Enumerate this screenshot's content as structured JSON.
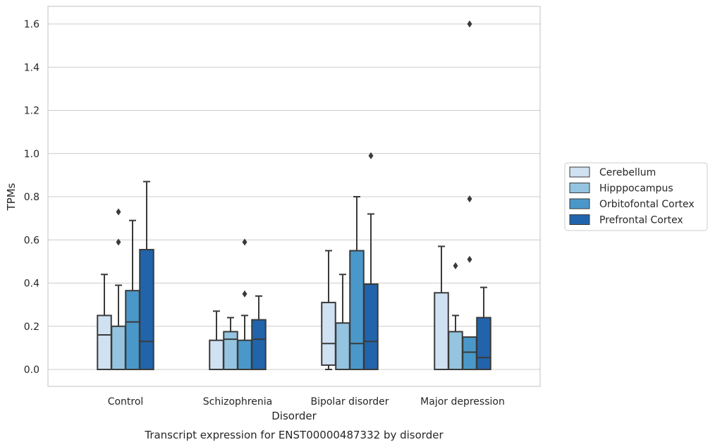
{
  "chart_data": {
    "type": "boxplot",
    "title": "",
    "caption": "Transcript expression for ENST00000487332 by disorder",
    "xlabel": "Disorder",
    "ylabel": "TPMs",
    "ylim": [
      -0.08,
      1.68
    ],
    "yticks": [
      0.0,
      0.2,
      0.4,
      0.6,
      0.8,
      1.0,
      1.2,
      1.4,
      1.6
    ],
    "ytick_labels": [
      "0.0",
      "0.2",
      "0.4",
      "0.6",
      "0.8",
      "1.0",
      "1.2",
      "1.4",
      "1.6"
    ],
    "categories": [
      "Control",
      "Schizophrenia",
      "Bipolar disorder",
      "Major depression"
    ],
    "grid": "horizontal",
    "legend_position": "right",
    "series": [
      {
        "name": "Cerebellum",
        "color": "#d0e1f2",
        "boxes": [
          {
            "whislo": 0.0,
            "q1": 0.0,
            "med": 0.16,
            "q3": 0.25,
            "whishi": 0.44,
            "fliers": []
          },
          {
            "whislo": 0.0,
            "q1": 0.0,
            "med": 0.0,
            "q3": 0.135,
            "whishi": 0.27,
            "fliers": []
          },
          {
            "whislo": 0.0,
            "q1": 0.02,
            "med": 0.12,
            "q3": 0.31,
            "whishi": 0.55,
            "fliers": []
          },
          {
            "whislo": 0.0,
            "q1": 0.0,
            "med": 0.0,
            "q3": 0.355,
            "whishi": 0.57,
            "fliers": []
          }
        ]
      },
      {
        "name": "Hipppocampus",
        "color": "#94c4df",
        "boxes": [
          {
            "whislo": 0.0,
            "q1": 0.0,
            "med": 0.0,
            "q3": 0.2,
            "whishi": 0.39,
            "fliers": [
              0.59,
              0.73
            ]
          },
          {
            "whislo": 0.0,
            "q1": 0.0,
            "med": 0.14,
            "q3": 0.175,
            "whishi": 0.24,
            "fliers": []
          },
          {
            "whislo": 0.0,
            "q1": 0.0,
            "med": 0.0,
            "q3": 0.215,
            "whishi": 0.44,
            "fliers": []
          },
          {
            "whislo": 0.0,
            "q1": 0.0,
            "med": 0.0,
            "q3": 0.175,
            "whishi": 0.25,
            "fliers": [
              0.48
            ]
          }
        ]
      },
      {
        "name": "Orbitofontal Cortex",
        "color": "#4a98c9",
        "boxes": [
          {
            "whislo": 0.0,
            "q1": 0.0,
            "med": 0.22,
            "q3": 0.365,
            "whishi": 0.69,
            "fliers": []
          },
          {
            "whislo": 0.0,
            "q1": 0.0,
            "med": 0.0,
            "q3": 0.135,
            "whishi": 0.25,
            "fliers": [
              0.35,
              0.59
            ]
          },
          {
            "whislo": 0.0,
            "q1": 0.0,
            "med": 0.12,
            "q3": 0.55,
            "whishi": 0.8,
            "fliers": []
          },
          {
            "whislo": 0.0,
            "q1": 0.0,
            "med": 0.08,
            "q3": 0.15,
            "whishi": 0.15,
            "fliers": [
              0.51,
              0.79,
              1.6
            ]
          }
        ]
      },
      {
        "name": "Prefrontal Cortex",
        "color": "#2164ab",
        "boxes": [
          {
            "whislo": 0.0,
            "q1": 0.0,
            "med": 0.13,
            "q3": 0.555,
            "whishi": 0.87,
            "fliers": []
          },
          {
            "whislo": 0.0,
            "q1": 0.0,
            "med": 0.14,
            "q3": 0.23,
            "whishi": 0.34,
            "fliers": []
          },
          {
            "whislo": 0.0,
            "q1": 0.0,
            "med": 0.13,
            "q3": 0.395,
            "whishi": 0.72,
            "fliers": [
              0.99
            ]
          },
          {
            "whislo": 0.0,
            "q1": 0.0,
            "med": 0.055,
            "q3": 0.24,
            "whishi": 0.38,
            "fliers": []
          }
        ]
      }
    ],
    "colors": {
      "edge": "#3a3a3a",
      "grid": "#cccccc",
      "frame": "#cccccc",
      "text": "#262626"
    }
  }
}
